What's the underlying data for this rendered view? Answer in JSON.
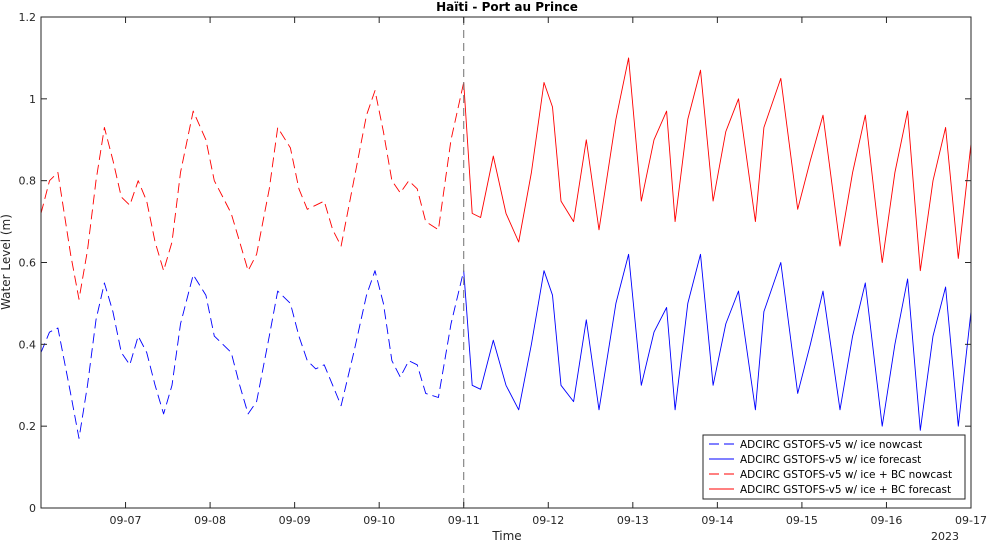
{
  "chart_data": {
    "type": "line",
    "title": "Haïti - Port au Prince",
    "xlabel": "Time",
    "ylabel": "Water Level (m)",
    "year_label": "2023",
    "x_tick_labels": [
      "09-07",
      "09-08",
      "09-09",
      "09-10",
      "09-11",
      "09-12",
      "09-13",
      "09-14",
      "09-15",
      "09-16",
      "09-17"
    ],
    "x_ticks_day": [
      7,
      8,
      9,
      10,
      11,
      12,
      13,
      14,
      15,
      16,
      17
    ],
    "xlim_day": [
      6.0,
      17.0
    ],
    "ylim": [
      0,
      1.2
    ],
    "y_ticks": [
      0,
      0.2,
      0.4,
      0.6,
      0.8,
      1.0,
      1.2
    ],
    "y_tick_labels": [
      "0",
      "0.2",
      "0.4",
      "0.6",
      "0.8",
      "1",
      "1.2"
    ],
    "nowcast_forecast_boundary_day": 11,
    "grid": false,
    "legend_position": "bottom-right",
    "series": [
      {
        "name": "ADCIRC GSTOFS-v5 w/ ice nowcast",
        "color": "#0000ff",
        "style": "dashed",
        "x_day": [
          6.0,
          6.1,
          6.2,
          6.35,
          6.45,
          6.55,
          6.65,
          6.75,
          6.85,
          6.95,
          7.05,
          7.15,
          7.25,
          7.35,
          7.45,
          7.55,
          7.65,
          7.8,
          7.95,
          8.05,
          8.15,
          8.25,
          8.35,
          8.45,
          8.55,
          8.7,
          8.8,
          8.95,
          9.05,
          9.15,
          9.25,
          9.35,
          9.45,
          9.55,
          9.7,
          9.85,
          9.95,
          10.05,
          10.15,
          10.25,
          10.35,
          10.45,
          10.55,
          10.7,
          10.85,
          11.0
        ],
        "y": [
          0.38,
          0.43,
          0.44,
          0.28,
          0.17,
          0.3,
          0.46,
          0.55,
          0.48,
          0.38,
          0.35,
          0.42,
          0.38,
          0.3,
          0.23,
          0.3,
          0.45,
          0.57,
          0.52,
          0.42,
          0.4,
          0.38,
          0.3,
          0.23,
          0.26,
          0.42,
          0.53,
          0.5,
          0.42,
          0.36,
          0.34,
          0.35,
          0.3,
          0.25,
          0.38,
          0.52,
          0.58,
          0.5,
          0.36,
          0.32,
          0.36,
          0.35,
          0.28,
          0.27,
          0.45,
          0.58
        ]
      },
      {
        "name": "ADCIRC GSTOFS-v5 w/ ice forecast",
        "color": "#0000ff",
        "style": "solid",
        "x_day": [
          11.0,
          11.1,
          11.2,
          11.35,
          11.5,
          11.65,
          11.8,
          11.95,
          12.05,
          12.15,
          12.3,
          12.45,
          12.6,
          12.8,
          12.95,
          13.1,
          13.25,
          13.4,
          13.5,
          13.65,
          13.8,
          13.95,
          14.1,
          14.25,
          14.45,
          14.55,
          14.75,
          14.95,
          15.1,
          15.25,
          15.45,
          15.6,
          15.75,
          15.95,
          16.1,
          16.25,
          16.4,
          16.55,
          16.7,
          16.85,
          17.0
        ],
        "y": [
          0.58,
          0.3,
          0.29,
          0.41,
          0.3,
          0.24,
          0.4,
          0.58,
          0.52,
          0.3,
          0.26,
          0.46,
          0.24,
          0.5,
          0.62,
          0.3,
          0.43,
          0.49,
          0.24,
          0.5,
          0.62,
          0.3,
          0.45,
          0.53,
          0.24,
          0.48,
          0.6,
          0.28,
          0.4,
          0.53,
          0.24,
          0.42,
          0.55,
          0.2,
          0.4,
          0.56,
          0.19,
          0.42,
          0.54,
          0.2,
          0.48
        ]
      },
      {
        "name": "ADCIRC GSTOFS-v5 w/ ice + BC nowcast",
        "color": "#ff0000",
        "style": "dashed",
        "x_day": [
          6.0,
          6.1,
          6.2,
          6.35,
          6.45,
          6.55,
          6.65,
          6.75,
          6.85,
          6.95,
          7.05,
          7.15,
          7.25,
          7.35,
          7.45,
          7.55,
          7.65,
          7.8,
          7.95,
          8.05,
          8.15,
          8.25,
          8.35,
          8.45,
          8.55,
          8.7,
          8.8,
          8.95,
          9.05,
          9.15,
          9.25,
          9.35,
          9.45,
          9.55,
          9.7,
          9.85,
          9.95,
          10.05,
          10.15,
          10.25,
          10.35,
          10.45,
          10.55,
          10.7,
          10.85,
          11.0
        ],
        "y": [
          0.72,
          0.8,
          0.82,
          0.62,
          0.51,
          0.63,
          0.8,
          0.93,
          0.85,
          0.76,
          0.74,
          0.8,
          0.75,
          0.65,
          0.58,
          0.65,
          0.82,
          0.97,
          0.9,
          0.8,
          0.76,
          0.72,
          0.65,
          0.58,
          0.62,
          0.78,
          0.93,
          0.88,
          0.78,
          0.73,
          0.74,
          0.75,
          0.68,
          0.64,
          0.8,
          0.96,
          1.02,
          0.92,
          0.8,
          0.77,
          0.8,
          0.78,
          0.7,
          0.68,
          0.9,
          1.04
        ]
      },
      {
        "name": "ADCIRC GSTOFS-v5 w/ ice + BC forecast",
        "color": "#ff0000",
        "style": "solid",
        "x_day": [
          11.0,
          11.1,
          11.2,
          11.35,
          11.5,
          11.65,
          11.8,
          11.95,
          12.05,
          12.15,
          12.3,
          12.45,
          12.6,
          12.8,
          12.95,
          13.1,
          13.25,
          13.4,
          13.5,
          13.65,
          13.8,
          13.95,
          14.1,
          14.25,
          14.45,
          14.55,
          14.75,
          14.95,
          15.1,
          15.25,
          15.45,
          15.6,
          15.75,
          15.95,
          16.1,
          16.25,
          16.4,
          16.55,
          16.7,
          16.85,
          17.0
        ],
        "y": [
          1.04,
          0.72,
          0.71,
          0.86,
          0.72,
          0.65,
          0.82,
          1.04,
          0.98,
          0.75,
          0.7,
          0.9,
          0.68,
          0.95,
          1.1,
          0.75,
          0.9,
          0.97,
          0.7,
          0.95,
          1.07,
          0.75,
          0.92,
          1.0,
          0.7,
          0.93,
          1.05,
          0.73,
          0.85,
          0.96,
          0.64,
          0.82,
          0.96,
          0.6,
          0.82,
          0.97,
          0.58,
          0.8,
          0.93,
          0.61,
          0.89
        ]
      }
    ]
  }
}
